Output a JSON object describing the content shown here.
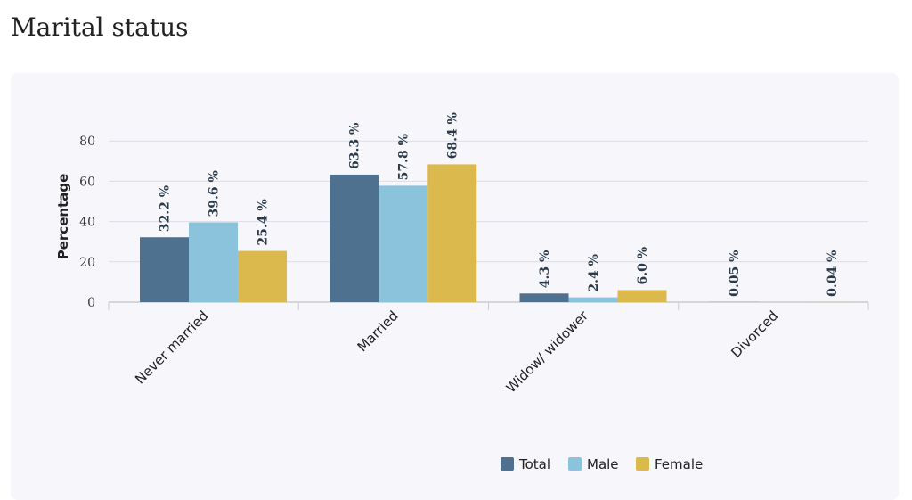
{
  "page": {
    "title": "Marital status"
  },
  "colors": {
    "Total": "#4f7190",
    "Male": "#8cc3dc",
    "Female": "#dbb94c",
    "grid": "#dcdce6",
    "axis": "#cccccc"
  },
  "chart_data": {
    "type": "bar",
    "title": "",
    "xlabel": "",
    "ylabel": "Percentage",
    "ylim": [
      0,
      80
    ],
    "yticks": [
      0,
      20,
      40,
      60,
      80
    ],
    "grid": true,
    "legend": "bottom",
    "categories": [
      "Never married",
      "Married",
      "Widow/ widower",
      "Divorced"
    ],
    "series": [
      {
        "name": "Total",
        "values": [
          32.2,
          63.3,
          4.3,
          0.05
        ],
        "labels": [
          "32.2 %",
          "63.3 %",
          "4.3 %",
          "0.05 %"
        ]
      },
      {
        "name": "Male",
        "values": [
          39.6,
          57.8,
          2.4,
          null
        ],
        "labels": [
          "39.6 %",
          "57.8 %",
          "2.4 %",
          ""
        ]
      },
      {
        "name": "Female",
        "values": [
          25.4,
          68.4,
          6.0,
          0.04
        ],
        "labels": [
          "25.4 %",
          "68.4 %",
          "6.0 %",
          "0.04 %"
        ]
      }
    ]
  }
}
